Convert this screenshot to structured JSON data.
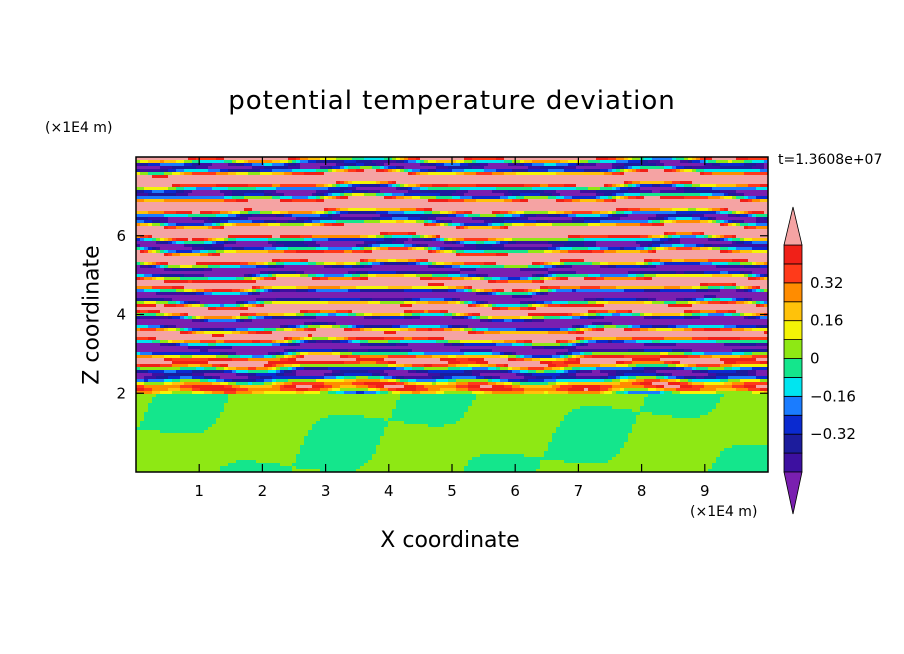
{
  "chart_data": {
    "type": "heatmap",
    "title": "potential temperature deviation",
    "xlabel": "X coordinate",
    "ylabel": "Z coordinate",
    "x_unit": "(×1E4 m)",
    "y_unit": "(×1E4 m)",
    "time_label": "t=1.3608e+07",
    "xlim": [
      0,
      10
    ],
    "ylim": [
      0,
      8
    ],
    "x_ticks": [
      1,
      2,
      3,
      4,
      5,
      6,
      7,
      8,
      9
    ],
    "y_ticks": [
      2,
      4,
      6
    ],
    "colorbar": {
      "levels": [
        -0.48,
        -0.4,
        -0.32,
        -0.24,
        -0.16,
        -0.08,
        0,
        0.08,
        0.16,
        0.24,
        0.32,
        0.4,
        0.48
      ],
      "labels": [
        "-0.32",
        "-0.16",
        "0",
        "0.16",
        "0.32"
      ],
      "label_values": [
        -0.32,
        -0.16,
        0,
        0.16,
        0.32
      ],
      "colors": [
        "#7a1fb0",
        "#3d10a0",
        "#1c1c9c",
        "#0a2ad0",
        "#1a7cff",
        "#00e5f0",
        "#14e68c",
        "#8ee814",
        "#f4f406",
        "#ffc20a",
        "#ff8c00",
        "#ff3a1a",
        "#f02018",
        "#f5a3a3"
      ],
      "extend": "both"
    }
  }
}
